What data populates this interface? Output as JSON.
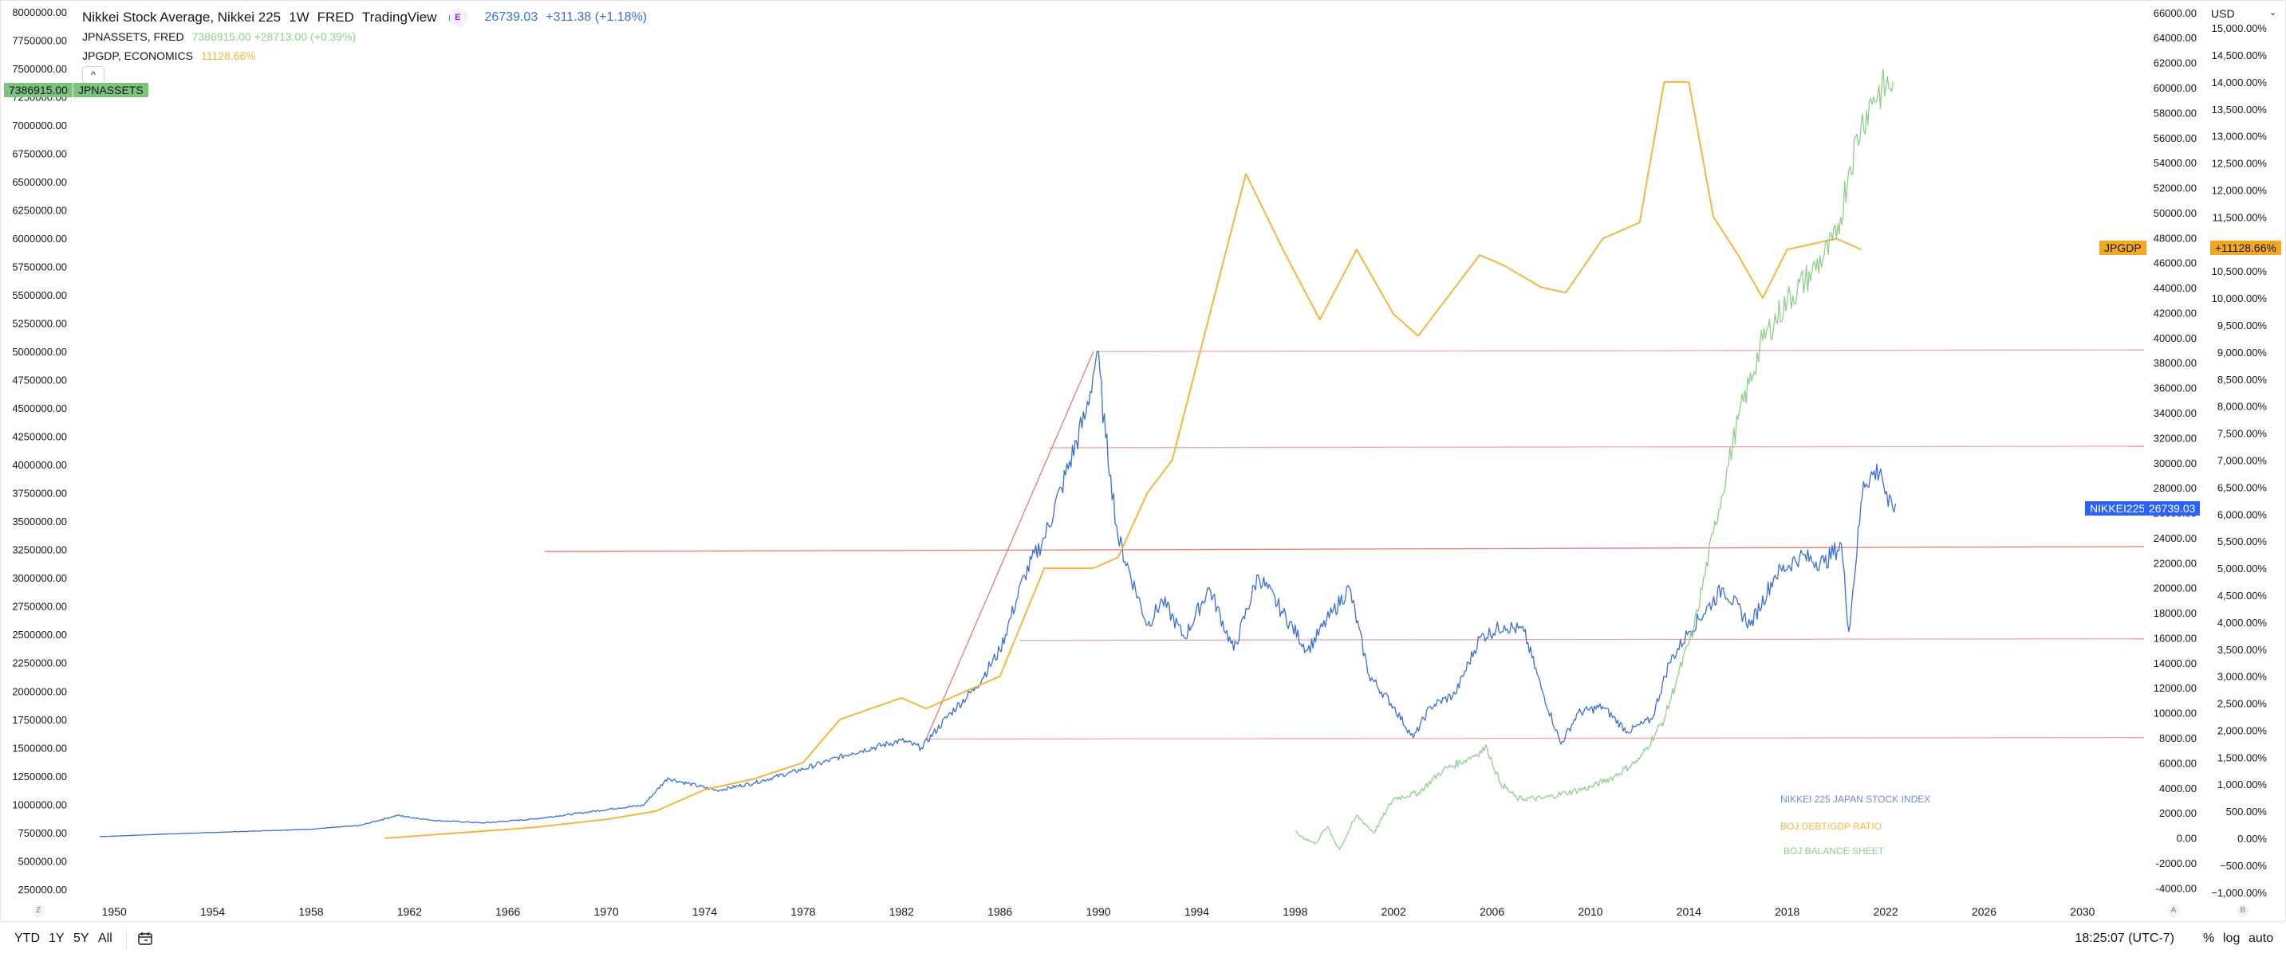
{
  "legend": {
    "main_title": "Nikkei Stock Average, Nikkei 225",
    "interval": "1W",
    "source": "FRED",
    "publisher": "TradingView",
    "badge": "E",
    "main_value": "26739.03",
    "main_change": "+311.38 (+1.18%)",
    "assets_title": "JPNASSETS, FRED",
    "assets_value": "7386915.00",
    "assets_change": "+28713.00 (+0.39%)",
    "gdp_title": "JPGDP, ECONOMICS",
    "gdp_value": "11128.66%",
    "collapse_icon": "^"
  },
  "tags": {
    "assets_tag_value": "7386915.00",
    "assets_tag_label": "JPNASSETS",
    "gdp_tag_label": "JPGDP",
    "gdp_tag_value": "+11128.66%",
    "nikkei_tag_label": "NIKKEI225",
    "nikkei_tag_value": "26739.03"
  },
  "annotations": {
    "nikkei": "NIKKEI 225 JAPAN STOCK INDEX",
    "debt": "BOJ DEBT/GDP RATIO",
    "balance": "BOJ BALANCE SHEET"
  },
  "toolbar": {
    "ytd": "YTD",
    "one_year": "1Y",
    "five_year": "5Y",
    "all": "All",
    "compare_icon": "calendar-range-icon",
    "clock": "18:25:07 (UTC-7)",
    "percent": "%",
    "log": "log",
    "auto": "auto",
    "currency": "USD",
    "currency_caret": "⌄"
  },
  "corners": {
    "bottom_left": "Z",
    "bottom_mid": "A",
    "bottom_right": "B"
  },
  "colors": {
    "nikkei": "#3a6fd8",
    "gdp": "#f5b63c",
    "assets": "#8fcf8c",
    "hline": "#f2a7a7",
    "trend": "#e07a7a",
    "nikkei_tag_bg": "#2962ff",
    "gdp_tag_bg": "#f5a623",
    "assets_tag_bg": "#7fc27d"
  },
  "chart_data": {
    "type": "line",
    "x_range": [
      1948.6,
      2032.5
    ],
    "x_ticks": [
      1950,
      1954,
      1958,
      1962,
      1966,
      1970,
      1974,
      1978,
      1982,
      1986,
      1990,
      1994,
      1998,
      2002,
      2006,
      2010,
      2014,
      2018,
      2022,
      2026,
      2030
    ],
    "left_axis": {
      "range": [
        150000,
        8050000
      ],
      "ticks": [
        250000,
        500000,
        750000,
        1000000,
        1250000,
        1500000,
        1750000,
        2000000,
        2250000,
        2500000,
        2750000,
        3000000,
        3250000,
        3500000,
        3750000,
        4000000,
        4250000,
        4500000,
        4750000,
        5000000,
        5250000,
        5500000,
        5750000,
        6000000,
        6250000,
        6500000,
        6750000,
        7000000,
        7250000,
        7500000,
        7750000,
        8000000
      ],
      "tick_decimals": 2
    },
    "right_axis_price": {
      "range": [
        -5000,
        66500
      ],
      "ticks": [
        -4000,
        -2000,
        0,
        2000,
        4000,
        6000,
        8000,
        10000,
        12000,
        14000,
        16000,
        18000,
        20000,
        22000,
        24000,
        26000,
        28000,
        30000,
        32000,
        34000,
        36000,
        38000,
        40000,
        42000,
        44000,
        46000,
        48000,
        50000,
        52000,
        54000,
        56000,
        58000,
        60000,
        62000,
        64000,
        66000
      ],
      "tick_decimals": 2
    },
    "right_axis_percent": {
      "range": [
        -1150,
        15400
      ],
      "ticks": [
        -1000,
        -500,
        0,
        500,
        1000,
        1500,
        2000,
        2500,
        3000,
        3500,
        4000,
        4500,
        5000,
        5500,
        6000,
        6500,
        7000,
        7500,
        8000,
        8500,
        9000,
        9500,
        10000,
        10500,
        11000,
        11500,
        12000,
        12500,
        13000,
        13500,
        14000,
        14500,
        15000
      ],
      "tick_decimals": 2,
      "suffix": "%"
    },
    "series": [
      {
        "name": "NIKKEI225",
        "axis": "right_price",
        "x": [
          1949.4,
          1952,
          1955,
          1958,
          1960,
          1961.5,
          1963,
          1965,
          1967,
          1969,
          1970.5,
          1971.5,
          1972.5,
          1973,
          1974.5,
          1976,
          1978,
          1980,
          1982,
          1982.8,
          1984,
          1985,
          1986,
          1987,
          1987.8,
          1988.5,
          1989.5,
          1989.95,
          1990.3,
          1990.5,
          1990.8,
          1992,
          1992.6,
          1993.5,
          1994.5,
          1995.5,
          1996.5,
          1997.5,
          1998.5,
          1999.5,
          2000.2,
          2001,
          2002,
          2002.8,
          2003.5,
          2004.5,
          2005.5,
          2006.5,
          2007.3,
          2008,
          2008.8,
          2009.5,
          2010.5,
          2011.5,
          2012.5,
          2013.2,
          2014,
          2015.4,
          2016.5,
          2017.5,
          2018.5,
          2019.5,
          2020.2,
          2020.5,
          2021.1,
          2021.8,
          2022.1,
          2022.4
        ],
        "values": [
          100,
          300,
          500,
          700,
          1000,
          1800,
          1400,
          1200,
          1500,
          2000,
          2400,
          2600,
          4800,
          4500,
          3800,
          4400,
          5500,
          6800,
          7800,
          7200,
          10000,
          12000,
          15000,
          21000,
          24000,
          28000,
          34000,
          38900,
          32000,
          29000,
          24000,
          17000,
          19000,
          16000,
          20000,
          15000,
          21000,
          18000,
          15000,
          18000,
          20000,
          13000,
          10500,
          8000,
          10500,
          11500,
          16000,
          17000,
          16500,
          12000,
          7500,
          10000,
          10500,
          8500,
          9500,
          14000,
          16500,
          20000,
          17000,
          21000,
          22500,
          22000,
          23500,
          16500,
          28500,
          29500,
          26500,
          26739
        ]
      },
      {
        "name": "JPGDP",
        "axis": "right_percent",
        "x": [
          1961,
          1964,
          1967,
          1970,
          1972,
          1974,
          1976,
          1978,
          1979.5,
          1982,
          1983,
          1986,
          1987.8,
          1989.8,
          1990.8,
          1992,
          1993,
          1996,
          1997.5,
          1999,
          2000.5,
          2002,
          2003,
          2005.5,
          2006.5,
          2008,
          2009,
          2010.5,
          2012,
          2013,
          2014,
          2015,
          2016,
          2017,
          2018,
          2020,
          2021
        ],
        "values": [
          0,
          100,
          200,
          350,
          500,
          900,
          1100,
          1400,
          2200,
          2600,
          2400,
          3000,
          5000,
          5000,
          5200,
          6400,
          7000,
          12300,
          10900,
          9600,
          10900,
          9700,
          9300,
          10800,
          10600,
          10200,
          10100,
          11100,
          11400,
          14000,
          14000,
          11500,
          10800,
          10000,
          10900,
          11100,
          10900
        ]
      },
      {
        "name": "JPNASSETS",
        "axis": "left",
        "x": [
          1998,
          1998.8,
          1999.3,
          1999.8,
          2000.5,
          2001.2,
          2002,
          2003,
          2004,
          2005,
          2005.8,
          2006.3,
          2007,
          2008,
          2009,
          2010,
          2011,
          2012,
          2013,
          2013.5,
          2014.2,
          2015,
          2016,
          2017,
          2018,
          2019,
          2020,
          2020.5,
          2021,
          2021.5,
          2022.3
        ],
        "values": [
          750000,
          650000,
          800000,
          600000,
          900000,
          750000,
          1050000,
          1100000,
          1300000,
          1400000,
          1500000,
          1200000,
          1050000,
          1050000,
          1100000,
          1150000,
          1250000,
          1400000,
          1750000,
          2100000,
          2550000,
          3400000,
          4400000,
          5100000,
          5450000,
          5700000,
          6000000,
          6600000,
          7000000,
          7250000,
          7386915
        ]
      }
    ],
    "horizontal_lines": [
      {
        "axis": "right_price",
        "value": 38900,
        "from_x": 1989.9
      },
      {
        "axis": "right_price",
        "value": 31200,
        "from_x": 1988.0
      },
      {
        "axis": "right_price",
        "value": 15800,
        "from_x": 1986.8
      },
      {
        "axis": "right_price",
        "value": 7900,
        "from_x": 1983.0
      }
    ],
    "trend_lines": [
      {
        "axis": "right_price",
        "x": [
          1983.0,
          1989.8
        ],
        "values": [
          7900,
          38900
        ]
      },
      {
        "axis": "right_price",
        "x": [
          1967.5,
          2032.5
        ],
        "values": [
          22900,
          23300
        ]
      }
    ]
  }
}
